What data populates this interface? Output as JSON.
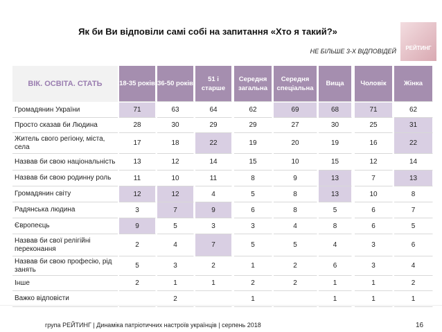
{
  "header": {
    "title": "Як би Ви відповіли самі собі на запитання «Хто я такий?»",
    "subtitle": "НЕ БІЛЬШЕ 3-Х ВІДПОВІДЕЙ",
    "logo": "РЕЙТИНГ"
  },
  "table": {
    "corner": "ВІК. ОСВІТА. СТАТЬ",
    "columns": [
      "18-35 років",
      "36-50 років",
      "51 і старше",
      "Середня загальна",
      "Середня спеціальна",
      "Вища",
      "Чоловік",
      "Жінка"
    ],
    "highlight_color": "#d9cfe3",
    "rows": [
      {
        "label": "Громадянин України",
        "values": [
          71,
          63,
          64,
          62,
          69,
          68,
          71,
          62
        ],
        "highlight": [
          0,
          4,
          5,
          6
        ]
      },
      {
        "label": "Просто сказав би Людина",
        "values": [
          28,
          30,
          29,
          29,
          27,
          30,
          25,
          31
        ],
        "highlight": [
          7
        ]
      },
      {
        "label": "Житель свого регіону, міста, села",
        "values": [
          17,
          18,
          22,
          19,
          20,
          19,
          16,
          22
        ],
        "highlight": [
          2,
          7
        ]
      },
      {
        "label": "Назвав би свою національність",
        "values": [
          13,
          12,
          14,
          15,
          10,
          15,
          12,
          14
        ],
        "highlight": []
      },
      {
        "label": "Назвав би свою родинну роль",
        "values": [
          11,
          10,
          11,
          8,
          9,
          13,
          7,
          13
        ],
        "highlight": [
          5,
          7
        ]
      },
      {
        "label": "Громадянин світу",
        "values": [
          12,
          12,
          4,
          5,
          8,
          13,
          10,
          8
        ],
        "highlight": [
          0,
          1,
          5
        ]
      },
      {
        "label": "Радянська людина",
        "values": [
          3,
          7,
          9,
          6,
          8,
          5,
          6,
          7
        ],
        "highlight": [
          1,
          2
        ]
      },
      {
        "label": "Європеєць",
        "values": [
          9,
          5,
          3,
          3,
          4,
          8,
          6,
          5
        ],
        "highlight": [
          0
        ]
      },
      {
        "label": "Назвав би свої релігійні переконання",
        "values": [
          2,
          4,
          7,
          5,
          5,
          4,
          3,
          6
        ],
        "highlight": [
          2
        ]
      },
      {
        "label": "Назвав би свою професію, рід занять",
        "values": [
          5,
          3,
          2,
          1,
          2,
          6,
          3,
          4
        ],
        "highlight": []
      },
      {
        "label": "Інше",
        "values": [
          2,
          1,
          1,
          2,
          2,
          1,
          1,
          2
        ],
        "highlight": []
      },
      {
        "label": "Важко відповісти",
        "values": [
          null,
          2,
          null,
          1,
          null,
          1,
          1,
          1
        ],
        "highlight": []
      }
    ]
  },
  "footer": {
    "source": "група РЕЙТИНГ | Динаміка патріотичних настроїв українців | серпень 2018",
    "page": "16"
  }
}
